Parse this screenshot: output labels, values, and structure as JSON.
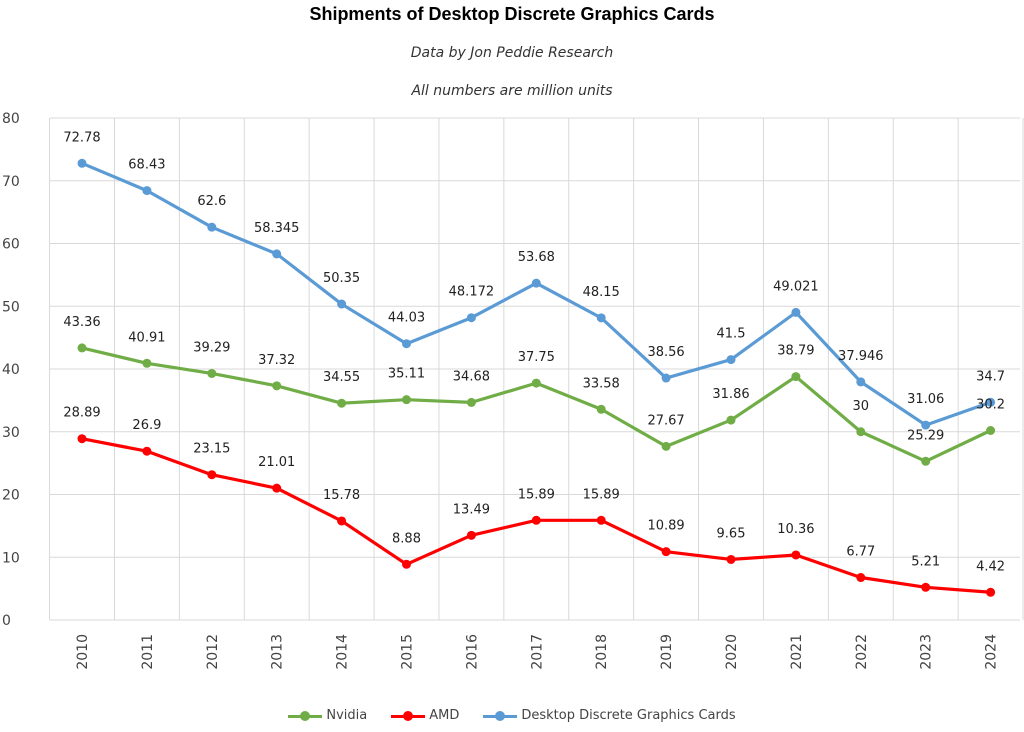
{
  "chart_data": {
    "type": "line",
    "title": "Shipments of Desktop Discrete Graphics Cards",
    "subtitle": "Data by Jon Peddie Research",
    "note": "All numbers are million units",
    "x": [
      "2010",
      "2011",
      "2012",
      "2013",
      "2014",
      "2015",
      "2016",
      "2017",
      "2018",
      "2019",
      "2020",
      "2021",
      "2022",
      "2023",
      "2024"
    ],
    "ylim": [
      0,
      80
    ],
    "yticks": [
      0,
      10,
      20,
      30,
      40,
      50,
      60,
      70,
      80
    ],
    "grid": true,
    "legend_position": "bottom",
    "series": [
      {
        "name": "Nvidia",
        "color": "#70ad47",
        "values": [
          43.36,
          40.91,
          39.29,
          37.32,
          34.55,
          35.11,
          34.68,
          37.75,
          33.58,
          27.67,
          31.86,
          38.79,
          30,
          25.29,
          30.2
        ],
        "labels": [
          "43.36",
          "40.91",
          "39.29",
          "37.32",
          "34.55",
          "35.11",
          "34.68",
          "37.75",
          "33.58",
          "27.67",
          "31.86",
          "38.79",
          "30",
          "25.29",
          "30.2"
        ]
      },
      {
        "name": "AMD",
        "color": "#ff0000",
        "values": [
          28.89,
          26.9,
          23.15,
          21.01,
          15.78,
          8.88,
          13.49,
          15.89,
          15.89,
          10.89,
          9.65,
          10.36,
          6.77,
          5.21,
          4.42
        ],
        "labels": [
          "28.89",
          "26.9",
          "23.15",
          "21.01",
          "15.78",
          "8.88",
          "13.49",
          "15.89",
          "15.89",
          "10.89",
          "9.65",
          "10.36",
          "6.77",
          "5.21",
          "4.42"
        ]
      },
      {
        "name": "Desktop Discrete Graphics Cards",
        "color": "#5b9bd5",
        "values": [
          72.78,
          68.43,
          62.6,
          58.345,
          50.35,
          44.03,
          48.172,
          53.68,
          48.15,
          38.56,
          41.5,
          49.021,
          37.946,
          31.06,
          34.7
        ],
        "labels": [
          "72.78",
          "68.43",
          "62.6",
          "58.345",
          "50.35",
          "44.03",
          "48.172",
          "53.68",
          "48.15",
          "38.56",
          "41.5",
          "49.021",
          "37.946",
          "31.06",
          "34.7"
        ]
      }
    ]
  }
}
